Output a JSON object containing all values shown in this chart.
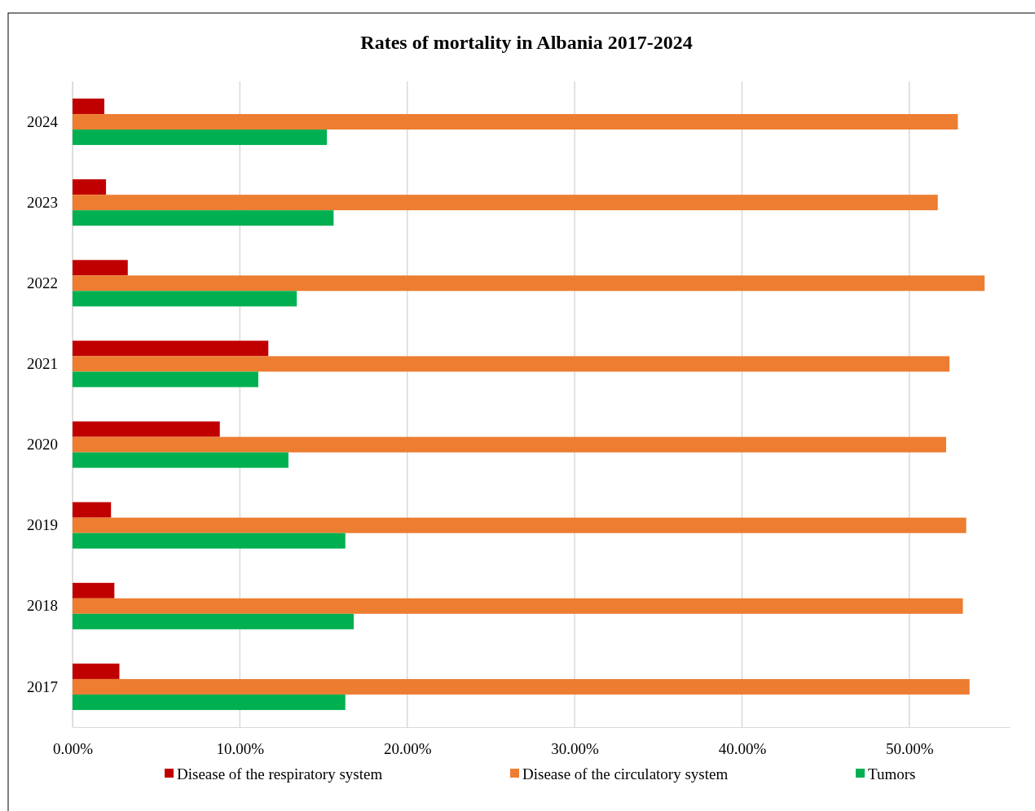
{
  "chart_data": {
    "type": "bar",
    "orientation": "horizontal",
    "title": "Rates of mortality in Albania 2017-2024",
    "categories": [
      "2024",
      "2023",
      "2022",
      "2021",
      "2020",
      "2019",
      "2018",
      "2017"
    ],
    "series": [
      {
        "name": "Disease of the respiratory system",
        "color": "#c00000",
        "values": [
          1.9,
          2.0,
          3.3,
          11.7,
          8.8,
          2.3,
          2.5,
          2.8
        ]
      },
      {
        "name": "Disease of the circulatory system",
        "color": "#ed7d31",
        "values": [
          52.9,
          51.7,
          54.5,
          52.4,
          52.2,
          53.4,
          53.2,
          53.6
        ]
      },
      {
        "name": "Tumors",
        "color": "#00b050",
        "values": [
          15.2,
          15.6,
          13.4,
          11.1,
          12.9,
          16.3,
          16.8,
          16.3
        ]
      }
    ],
    "xlim": [
      0,
      56
    ],
    "xticks": [
      {
        "value": 0,
        "label": "0.00%"
      },
      {
        "value": 10,
        "label": "10.00%"
      },
      {
        "value": 20,
        "label": "20.00%"
      },
      {
        "value": 30,
        "label": "30.00%"
      },
      {
        "value": 40,
        "label": "40.00%"
      },
      {
        "value": 50,
        "label": "50.00%"
      }
    ],
    "grid": "x",
    "legend": "bottom"
  }
}
